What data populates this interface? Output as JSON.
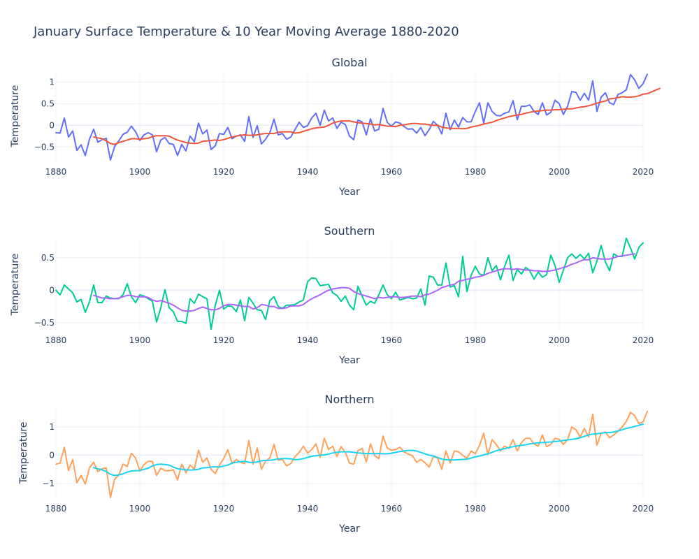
{
  "chart_data": {
    "type": "line",
    "title": "January Surface Temperature & 10 Year Moving Average 1880-2020",
    "subplots": [
      {
        "title": "Global",
        "xlabel": "Year",
        "ylabel": "Temperature",
        "xlim": [
          1880,
          2020
        ],
        "ylim": [
          -0.85,
          1.28
        ],
        "yticks": [
          -0.5,
          0,
          0.5,
          1
        ],
        "ytick_labels": [
          "−0.5",
          "0",
          "0.5",
          "1"
        ],
        "xticks": [
          1880,
          1900,
          1920,
          1940,
          1960,
          1980,
          2000,
          2020
        ],
        "series": [
          {
            "color": "#636efa",
            "x_start": 1880,
            "values": [
              -0.17,
              -0.18,
              0.17,
              -0.27,
              -0.13,
              -0.58,
              -0.45,
              -0.7,
              -0.32,
              -0.09,
              -0.39,
              -0.33,
              -0.3,
              -0.8,
              -0.49,
              -0.36,
              -0.21,
              -0.16,
              -0.02,
              -0.15,
              -0.35,
              -0.22,
              -0.17,
              -0.22,
              -0.61,
              -0.34,
              -0.28,
              -0.42,
              -0.44,
              -0.7,
              -0.44,
              -0.59,
              -0.25,
              -0.38,
              0.05,
              -0.2,
              -0.11,
              -0.56,
              -0.47,
              -0.19,
              -0.21,
              -0.05,
              -0.31,
              -0.25,
              -0.22,
              -0.37,
              0.2,
              -0.28,
              -0.01,
              -0.43,
              -0.32,
              -0.17,
              0.14,
              -0.22,
              -0.19,
              -0.32,
              -0.27,
              -0.1,
              0.07,
              -0.05,
              -0.01,
              0.17,
              0.28,
              0.0,
              0.35,
              0.1,
              0.17,
              -0.07,
              0.07,
              0.02,
              -0.25,
              -0.33,
              0.12,
              0.08,
              -0.22,
              0.15,
              -0.13,
              -0.09,
              0.39,
              0.07,
              -0.02,
              0.08,
              0.05,
              -0.03,
              -0.09,
              -0.08,
              -0.18,
              -0.05,
              -0.24,
              -0.1,
              0.09,
              0.0,
              -0.2,
              0.28,
              -0.1,
              0.12,
              -0.04,
              0.18,
              0.08,
              0.08,
              0.32,
              0.52,
              0.05,
              0.52,
              0.32,
              0.23,
              0.22,
              0.28,
              0.31,
              0.57,
              0.13,
              0.44,
              0.44,
              0.47,
              0.32,
              0.25,
              0.52,
              0.24,
              0.3,
              0.58,
              0.5,
              0.25,
              0.44,
              0.78,
              0.76,
              0.58,
              0.74,
              0.58,
              1.03,
              0.32,
              0.65,
              0.75,
              0.52,
              0.48,
              0.71,
              0.75,
              0.82,
              1.17,
              1.05,
              0.85,
              0.96,
              1.18
            ]
          },
          {
            "color": "#ef553b",
            "x_start": 1889,
            "values": [
              -0.27,
              -0.29,
              -0.31,
              -0.36,
              -0.42,
              -0.44,
              -0.4,
              -0.37,
              -0.34,
              -0.31,
              -0.31,
              -0.32,
              -0.31,
              -0.3,
              -0.26,
              -0.24,
              -0.24,
              -0.24,
              -0.25,
              -0.3,
              -0.34,
              -0.37,
              -0.4,
              -0.41,
              -0.42,
              -0.41,
              -0.37,
              -0.36,
              -0.35,
              -0.34,
              -0.35,
              -0.33,
              -0.3,
              -0.27,
              -0.25,
              -0.23,
              -0.22,
              -0.23,
              -0.23,
              -0.22,
              -0.2,
              -0.19,
              -0.19,
              -0.19,
              -0.16,
              -0.15,
              -0.15,
              -0.15,
              -0.18,
              -0.17,
              -0.14,
              -0.11,
              -0.08,
              -0.06,
              -0.05,
              -0.04,
              0.0,
              0.05,
              0.08,
              0.1,
              0.1,
              0.1,
              0.08,
              0.06,
              0.05,
              0.04,
              0.03,
              0.01,
              0.02,
              0.0,
              -0.02,
              -0.02,
              -0.03,
              0.0,
              0.01,
              0.03,
              0.04,
              0.04,
              0.03,
              0.03,
              0.01,
              0.0,
              0.0,
              -0.04,
              -0.06,
              -0.07,
              -0.07,
              -0.07,
              -0.08,
              -0.07,
              -0.04,
              -0.02,
              0.0,
              0.03,
              0.05,
              0.07,
              0.11,
              0.14,
              0.17,
              0.2,
              0.22,
              0.24,
              0.25,
              0.28,
              0.3,
              0.32,
              0.33,
              0.34,
              0.35,
              0.35,
              0.36,
              0.36,
              0.37,
              0.38,
              0.38,
              0.4,
              0.42,
              0.43,
              0.45,
              0.48,
              0.51,
              0.54,
              0.56,
              0.61,
              0.62,
              0.64,
              0.66,
              0.65,
              0.65,
              0.66,
              0.68,
              0.72,
              0.73,
              0.77,
              0.81,
              0.85
            ]
          }
        ]
      },
      {
        "title": "Southern",
        "xlabel": "Year",
        "ylabel": "Temperature",
        "xlim": [
          1880,
          2020
        ],
        "ylim": [
          -0.62,
          0.8
        ],
        "yticks": [
          -0.5,
          0,
          0.5
        ],
        "ytick_labels": [
          "−0.5",
          "0",
          "0.5"
        ],
        "xticks": [
          1880,
          1900,
          1920,
          1940,
          1960,
          1980,
          2000,
          2020
        ],
        "series": [
          {
            "color": "#00cc96",
            "x_start": 1880,
            "values": [
              0.0,
              -0.07,
              0.08,
              0.02,
              -0.04,
              -0.18,
              -0.14,
              -0.34,
              -0.18,
              0.08,
              -0.19,
              -0.19,
              -0.09,
              -0.12,
              -0.13,
              -0.13,
              -0.07,
              0.1,
              -0.1,
              -0.19,
              -0.07,
              -0.09,
              -0.13,
              -0.17,
              -0.49,
              -0.27,
              0.01,
              -0.27,
              -0.33,
              -0.48,
              -0.48,
              -0.51,
              -0.13,
              -0.2,
              -0.06,
              -0.1,
              -0.13,
              -0.6,
              -0.23,
              0.0,
              -0.29,
              -0.24,
              -0.25,
              -0.33,
              -0.15,
              -0.47,
              -0.11,
              -0.2,
              -0.3,
              -0.31,
              -0.45,
              -0.16,
              -0.1,
              -0.25,
              -0.28,
              -0.23,
              -0.23,
              -0.22,
              -0.18,
              -0.15,
              0.13,
              0.19,
              0.18,
              0.07,
              0.08,
              0.09,
              -0.04,
              -0.08,
              -0.17,
              -0.09,
              -0.23,
              -0.3,
              0.06,
              -0.09,
              -0.23,
              -0.17,
              -0.2,
              -0.07,
              0.08,
              -0.07,
              -0.13,
              -0.03,
              -0.15,
              -0.13,
              -0.11,
              -0.13,
              -0.12,
              0.02,
              -0.23,
              0.22,
              0.2,
              0.08,
              0.08,
              0.42,
              0.05,
              0.07,
              -0.1,
              0.52,
              -0.02,
              0.23,
              0.37,
              0.25,
              0.23,
              0.5,
              0.3,
              0.38,
              0.16,
              0.37,
              0.54,
              0.15,
              0.32,
              0.25,
              0.35,
              0.3,
              0.17,
              0.28,
              0.2,
              0.24,
              0.54,
              0.38,
              0.12,
              0.31,
              0.5,
              0.56,
              0.49,
              0.55,
              0.48,
              0.57,
              0.27,
              0.45,
              0.69,
              0.44,
              0.3,
              0.56,
              0.52,
              0.52,
              0.8,
              0.65,
              0.48,
              0.66,
              0.73
            ]
          },
          {
            "color": "#ab63fa",
            "x_start": 1889,
            "values": [
              -0.08,
              -0.1,
              -0.12,
              -0.12,
              -0.13,
              -0.13,
              -0.12,
              -0.1,
              -0.08,
              -0.08,
              -0.1,
              -0.1,
              -0.1,
              -0.11,
              -0.15,
              -0.17,
              -0.16,
              -0.18,
              -0.2,
              -0.23,
              -0.27,
              -0.31,
              -0.32,
              -0.32,
              -0.31,
              -0.28,
              -0.26,
              -0.28,
              -0.3,
              -0.3,
              -0.28,
              -0.24,
              -0.22,
              -0.22,
              -0.23,
              -0.24,
              -0.25,
              -0.25,
              -0.29,
              -0.27,
              -0.22,
              -0.23,
              -0.25,
              -0.25,
              -0.28,
              -0.28,
              -0.27,
              -0.24,
              -0.24,
              -0.24,
              -0.22,
              -0.17,
              -0.13,
              -0.1,
              -0.07,
              -0.03,
              0.0,
              0.02,
              0.03,
              0.04,
              0.04,
              0.03,
              -0.02,
              -0.05,
              -0.07,
              -0.09,
              -0.11,
              -0.13,
              -0.11,
              -0.12,
              -0.11,
              -0.1,
              -0.1,
              -0.11,
              -0.11,
              -0.1,
              -0.09,
              -0.09,
              -0.1,
              -0.07,
              -0.06,
              -0.03,
              0.0,
              0.04,
              0.06,
              0.08,
              0.09,
              0.14,
              0.15,
              0.17,
              0.18,
              0.2,
              0.21,
              0.23,
              0.26,
              0.28,
              0.3,
              0.32,
              0.33,
              0.33,
              0.32,
              0.33,
              0.32,
              0.31,
              0.31,
              0.3,
              0.3,
              0.29,
              0.29,
              0.3,
              0.31,
              0.33,
              0.35,
              0.37,
              0.4,
              0.42,
              0.45,
              0.47,
              0.47,
              0.5,
              0.49,
              0.48,
              0.48,
              0.48,
              0.5,
              0.52,
              0.53,
              0.54,
              0.55,
              0.56
            ]
          }
        ]
      },
      {
        "title": "Northern",
        "xlabel": "Year",
        "ylabel": "Temperature",
        "xlim": [
          1880,
          2020
        ],
        "ylim": [
          -1.55,
          1.72
        ],
        "yticks": [
          -1,
          0,
          1
        ],
        "ytick_labels": [
          "−1",
          "0",
          "1"
        ],
        "xticks": [
          1880,
          1900,
          1920,
          1940,
          1960,
          1980,
          2000,
          2020
        ],
        "series": [
          {
            "color": "#ffa15a",
            "x_start": 1880,
            "values": [
              -0.32,
              -0.28,
              0.28,
              -0.55,
              -0.15,
              -0.98,
              -0.72,
              -1.02,
              -0.45,
              -0.25,
              -0.58,
              -0.48,
              -0.45,
              -1.5,
              -0.85,
              -0.7,
              -0.32,
              -0.4,
              0.07,
              -0.1,
              -0.56,
              -0.33,
              -0.22,
              -0.22,
              -0.72,
              -0.46,
              -0.55,
              -0.55,
              -0.52,
              -0.88,
              -0.32,
              -0.62,
              -0.35,
              -0.5,
              0.18,
              -0.25,
              -0.1,
              -0.5,
              -0.65,
              -0.35,
              -0.12,
              0.2,
              -0.3,
              -0.15,
              -0.25,
              -0.3,
              0.52,
              -0.32,
              0.25,
              -0.5,
              -0.2,
              -0.1,
              0.38,
              -0.18,
              -0.15,
              -0.38,
              -0.3,
              -0.05,
              0.1,
              0.32,
              0.08,
              0.2,
              0.4,
              -0.08,
              0.6,
              0.2,
              0.32,
              -0.05,
              0.3,
              0.1,
              -0.28,
              -0.32,
              0.16,
              0.24,
              -0.24,
              0.4,
              -0.02,
              -0.12,
              0.68,
              0.25,
              0.18,
              0.2,
              0.28,
              0.12,
              0.04,
              -0.02,
              -0.25,
              -0.15,
              -0.27,
              -0.42,
              -0.05,
              -0.1,
              -0.5,
              0.15,
              -0.28,
              0.15,
              0.12,
              0.0,
              -0.1,
              0.15,
              0.05,
              0.35,
              0.78,
              0.02,
              0.55,
              0.38,
              0.15,
              0.32,
              0.24,
              0.55,
              0.15,
              0.45,
              0.6,
              0.6,
              0.4,
              0.32,
              0.72,
              0.3,
              0.38,
              0.6,
              0.56,
              0.38,
              0.55,
              1.0,
              0.9,
              0.64,
              0.95,
              0.65,
              1.45,
              0.35,
              0.78,
              0.82,
              0.62,
              0.72,
              0.84,
              1.0,
              1.2,
              1.52,
              1.4,
              1.12,
              1.18,
              1.55
            ]
          },
          {
            "color": "#19d3f3",
            "x_start": 1889,
            "values": [
              -0.44,
              -0.48,
              -0.52,
              -0.58,
              -0.68,
              -0.72,
              -0.7,
              -0.66,
              -0.6,
              -0.56,
              -0.55,
              -0.55,
              -0.5,
              -0.46,
              -0.38,
              -0.33,
              -0.32,
              -0.33,
              -0.35,
              -0.42,
              -0.48,
              -0.5,
              -0.52,
              -0.53,
              -0.52,
              -0.5,
              -0.45,
              -0.44,
              -0.42,
              -0.41,
              -0.42,
              -0.38,
              -0.35,
              -0.28,
              -0.25,
              -0.23,
              -0.22,
              -0.25,
              -0.26,
              -0.24,
              -0.2,
              -0.18,
              -0.18,
              -0.16,
              -0.13,
              -0.12,
              -0.12,
              -0.13,
              -0.16,
              -0.15,
              -0.12,
              -0.08,
              -0.04,
              -0.02,
              0.0,
              0.01,
              0.04,
              0.08,
              0.1,
              0.12,
              0.12,
              0.12,
              0.1,
              0.08,
              0.07,
              0.06,
              0.06,
              0.05,
              0.06,
              0.05,
              0.05,
              0.07,
              0.1,
              0.13,
              0.15,
              0.17,
              0.17,
              0.15,
              0.1,
              0.05,
              0.0,
              -0.03,
              -0.08,
              -0.14,
              -0.16,
              -0.17,
              -0.17,
              -0.16,
              -0.15,
              -0.14,
              -0.1,
              -0.06,
              -0.03,
              0.01,
              0.05,
              0.1,
              0.16,
              0.2,
              0.23,
              0.27,
              0.3,
              0.33,
              0.35,
              0.37,
              0.4,
              0.42,
              0.44,
              0.45,
              0.46,
              0.47,
              0.49,
              0.5,
              0.52,
              0.54,
              0.56,
              0.58,
              0.62,
              0.67,
              0.72,
              0.75,
              0.76,
              0.78,
              0.8,
              0.8,
              0.82,
              0.86,
              0.9,
              0.95,
              0.98,
              1.02,
              1.06,
              1.1
            ]
          }
        ]
      }
    ]
  }
}
